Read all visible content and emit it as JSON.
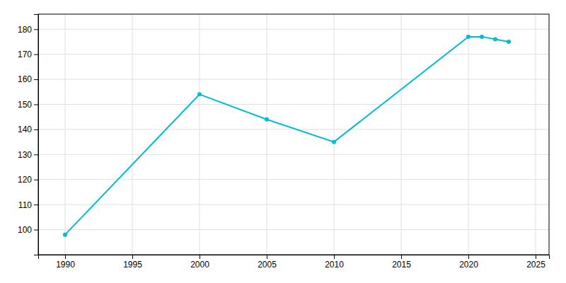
{
  "chart_data": {
    "type": "line",
    "x": [
      1990,
      2000,
      2005,
      2010,
      2020,
      2021,
      2022,
      2023
    ],
    "values": [
      98,
      154,
      144,
      135,
      177,
      177,
      176,
      175
    ],
    "color": "#00bcd4",
    "marker": "circle",
    "xlim": [
      1988,
      2026
    ],
    "ylim": [
      90,
      186
    ],
    "xticks": [
      1990,
      1995,
      2000,
      2005,
      2010,
      2015,
      2020,
      2025
    ],
    "yticks": [
      100,
      110,
      120,
      130,
      140,
      150,
      160,
      170,
      180
    ],
    "grid": true
  }
}
